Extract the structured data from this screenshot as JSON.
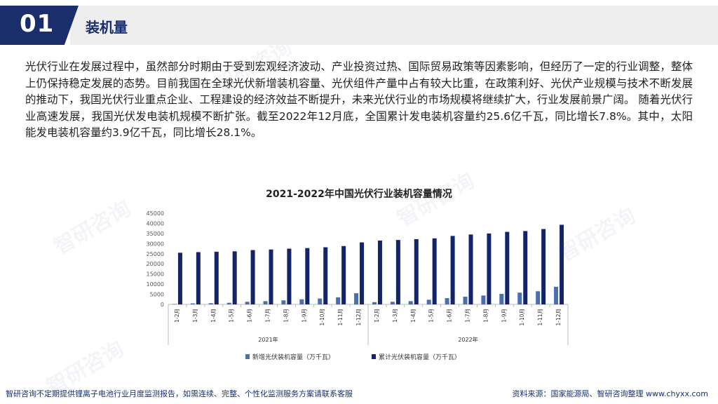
{
  "header": {
    "number": "01",
    "title": "装机量"
  },
  "body_text": "光伏行业在发展过程中，虽然部分时期由于受到宏观经济波动、产业投资过热、国际贸易政策等因素影响，但经历了一定的行业调整，整体上仍保持稳定发展的态势。目前我国在全球光伏新增装机容量、光伏组件产量中占有较大比重，在政策利好、光伏产业规模与技术不断发展的推动下，我国光伏行业重点企业、工程建设的经济效益不断提升，未来光伏行业的市场规模将继续扩大，行业发展前景广阔。 随着光伏行业高速发展，我国光伏发电装机规模不断扩张。截至2022年12月底，全国累计发电装机容量约25.6亿千瓦，同比增长7.8%。其中，太阳能发电装机容量约3.9亿千瓦，同比增长28.1%。",
  "watermark": "智研咨询",
  "footer": {
    "left": "智研咨询不定期提供锂离子电池行业月度监测报告，如需连续、完整、个性化监测服务方案请联系客服",
    "right": "资料来源：国家能源局、智研咨询整理   www.chyxx.com"
  },
  "colors": {
    "brand": "#1a2e6b",
    "new_series": "#4a6fb0",
    "cum_series": "#14246b"
  },
  "chart_data": {
    "type": "bar",
    "title": "2021-2022年中国光伏行业装机容量情况",
    "categories": [
      "1-2月",
      "1-3月",
      "1-4月",
      "1-5月",
      "1-6月",
      "1-7月",
      "1-8月",
      "1-9月",
      "1-10月",
      "1-11月",
      "1-12月",
      "1-2月",
      "1-3月",
      "1-4月",
      "1-5月",
      "1-6月",
      "1-7月",
      "1-8月",
      "1-9月",
      "1-10月",
      "1-11月",
      "1-12月"
    ],
    "groups": [
      {
        "label": "2021年",
        "start": 0,
        "end": 10
      },
      {
        "label": "2022年",
        "start": 11,
        "end": 21
      }
    ],
    "series": [
      {
        "name": "新增光伏装机容量（万千瓦）",
        "values": [
          200,
          500,
          600,
          800,
          1300,
          1600,
          2000,
          2500,
          2900,
          3500,
          5500,
          1100,
          1300,
          1600,
          2300,
          3100,
          3800,
          4400,
          5200,
          5800,
          6500,
          8700
        ]
      },
      {
        "name": "累计光伏装机容量（万千瓦）",
        "values": [
          25500,
          25800,
          26000,
          26200,
          26800,
          27100,
          27500,
          27800,
          28200,
          28800,
          30600,
          31500,
          31800,
          32200,
          32600,
          33800,
          34500,
          35000,
          35800,
          36200,
          37200,
          39300
        ]
      }
    ],
    "y_ticks": [
      "0",
      "5000",
      "10000",
      "15000",
      "20000",
      "25000",
      "30000",
      "35000",
      "40000",
      "45000"
    ],
    "ylim": [
      0,
      45000
    ],
    "legend_position": "bottom"
  }
}
